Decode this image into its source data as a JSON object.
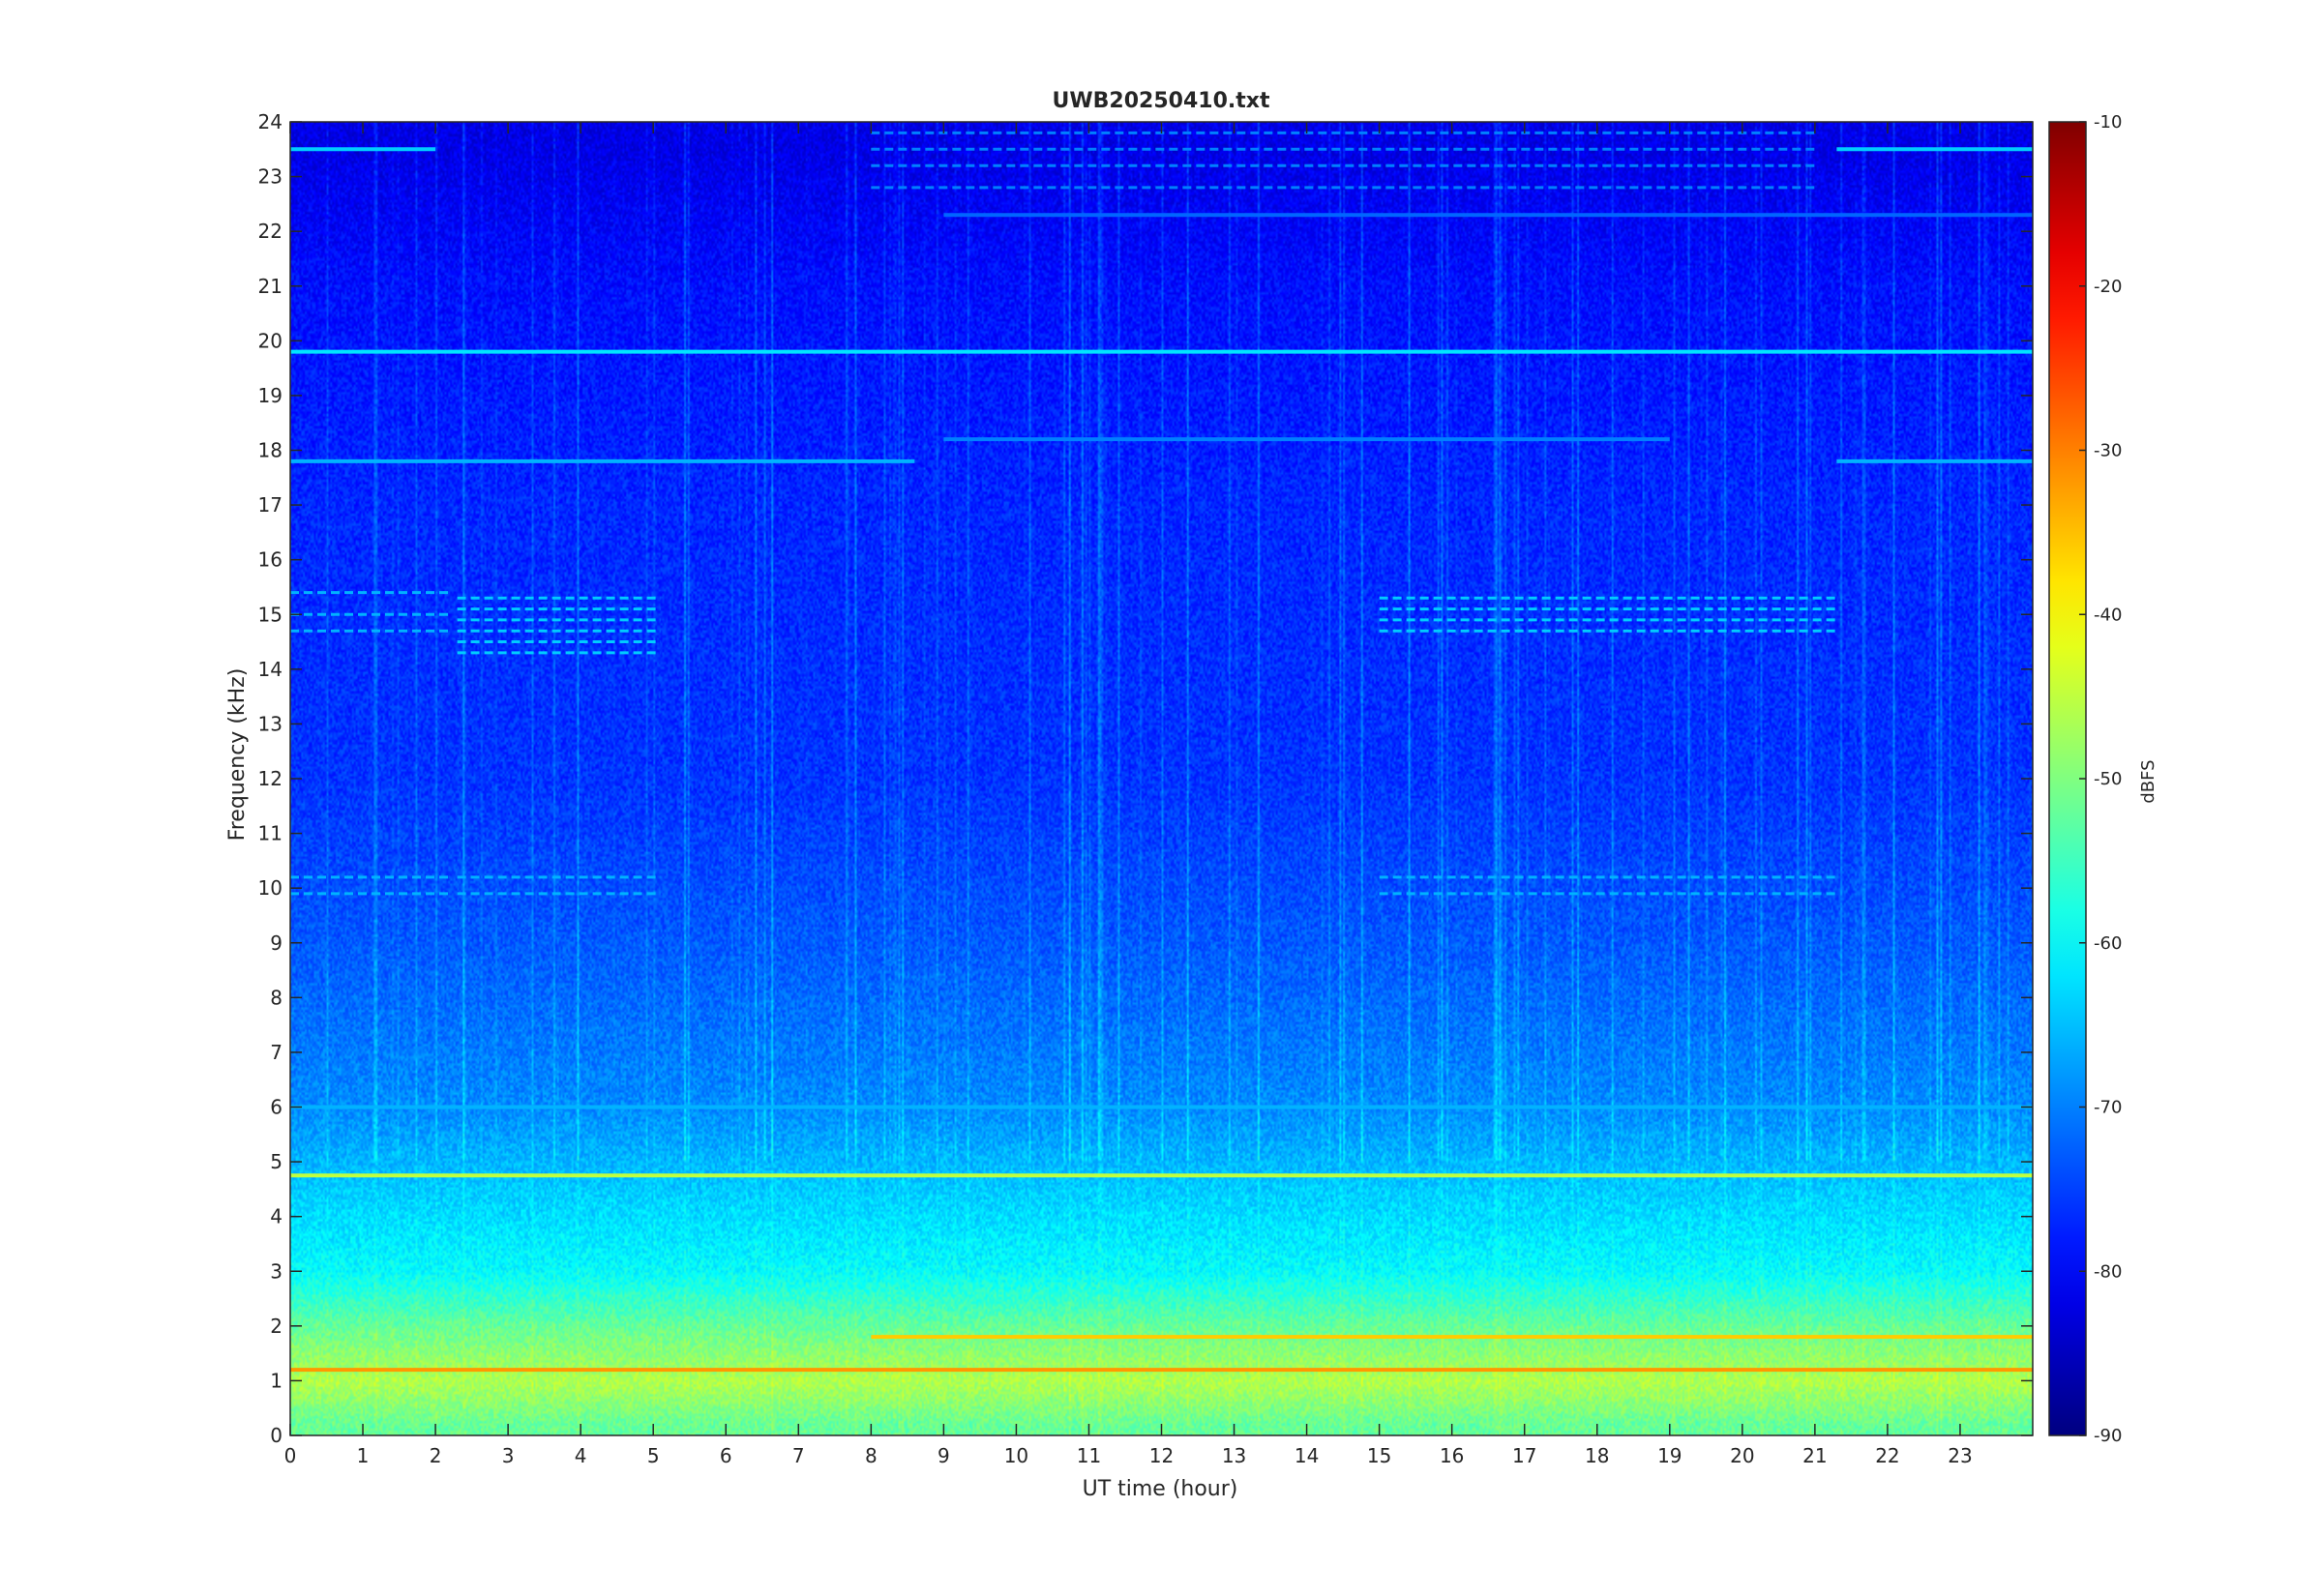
{
  "chart_data": {
    "type": "heatmap",
    "title": "UWB20250410.txt",
    "xlabel": "UT time (hour)",
    "ylabel": "Frequency (kHz)",
    "xlim": [
      0,
      24
    ],
    "ylim": [
      0,
      24
    ],
    "x_ticks": [
      "0",
      "1",
      "2",
      "3",
      "4",
      "5",
      "6",
      "7",
      "8",
      "9",
      "10",
      "11",
      "12",
      "13",
      "14",
      "15",
      "16",
      "17",
      "18",
      "19",
      "20",
      "21",
      "22",
      "23"
    ],
    "y_ticks": [
      "0",
      "1",
      "2",
      "3",
      "4",
      "5",
      "6",
      "7",
      "8",
      "9",
      "10",
      "11",
      "12",
      "13",
      "14",
      "15",
      "16",
      "17",
      "18",
      "19",
      "20",
      "21",
      "22",
      "23",
      "24"
    ],
    "colorbar": {
      "label": "dBFS",
      "range": [
        -90,
        -10
      ],
      "ticks": [
        "-10",
        "-20",
        "-30",
        "-40",
        "-50",
        "-60",
        "-70",
        "-80",
        "-90"
      ],
      "colormap": "jet"
    },
    "background_level_by_frequency_khz": [
      {
        "freq": 0.2,
        "dbfs": -52
      },
      {
        "freq": 1.0,
        "dbfs": -46
      },
      {
        "freq": 2.0,
        "dbfs": -52
      },
      {
        "freq": 3.0,
        "dbfs": -60
      },
      {
        "freq": 4.5,
        "dbfs": -64
      },
      {
        "freq": 6.0,
        "dbfs": -69
      },
      {
        "freq": 9.0,
        "dbfs": -73
      },
      {
        "freq": 12.0,
        "dbfs": -76
      },
      {
        "freq": 17.0,
        "dbfs": -77
      },
      {
        "freq": 21.0,
        "dbfs": -79
      },
      {
        "freq": 23.5,
        "dbfs": -82
      }
    ],
    "horizontal_lines": [
      {
        "freq": 19.8,
        "t_start": 0,
        "t_end": 24,
        "dbfs": -62
      },
      {
        "freq": 18.2,
        "t_start": 9,
        "t_end": 19,
        "dbfs": -70
      },
      {
        "freq": 17.8,
        "t_start": 0,
        "t_end": 8.6,
        "dbfs": -66
      },
      {
        "freq": 17.8,
        "t_start": 21.3,
        "t_end": 24,
        "dbfs": -66
      },
      {
        "freq": 4.75,
        "t_start": 0,
        "t_end": 24,
        "dbfs": -45
      },
      {
        "freq": 1.2,
        "t_start": 0,
        "t_end": 24,
        "dbfs": -32
      },
      {
        "freq": 1.8,
        "t_start": 8,
        "t_end": 24,
        "dbfs": -36
      },
      {
        "freq": 6.0,
        "t_start": 0,
        "t_end": 24,
        "dbfs": -66
      },
      {
        "freq": 23.5,
        "t_start": 0,
        "t_end": 2,
        "dbfs": -64
      },
      {
        "freq": 23.5,
        "t_start": 21.3,
        "t_end": 24,
        "dbfs": -64
      },
      {
        "freq": 22.3,
        "t_start": 9,
        "t_end": 24,
        "dbfs": -72
      }
    ],
    "line_groups": [
      {
        "t_start": 15.0,
        "t_end": 21.3,
        "freqs": [
          15.3,
          15.1,
          14.9,
          14.7
        ],
        "dbfs": -64
      },
      {
        "t_start": 15.0,
        "t_end": 21.3,
        "freqs": [
          10.2,
          9.9
        ],
        "dbfs": -66
      },
      {
        "t_start": 2.3,
        "t_end": 5.1,
        "freqs": [
          15.3,
          15.1,
          14.9,
          14.7,
          14.5,
          14.3
        ],
        "dbfs": -64
      },
      {
        "t_start": 2.3,
        "t_end": 5.1,
        "freqs": [
          10.2,
          9.9
        ],
        "dbfs": -66
      },
      {
        "t_start": 0,
        "t_end": 2.2,
        "freqs": [
          15.4,
          15.0,
          14.7
        ],
        "dbfs": -66
      },
      {
        "t_start": 0,
        "t_end": 2.2,
        "freqs": [
          10.2,
          9.9
        ],
        "dbfs": -66
      },
      {
        "t_start": 8.0,
        "t_end": 21.0,
        "freqs": [
          23.8,
          23.5,
          23.2,
          22.8
        ],
        "dbfs": -70
      }
    ]
  }
}
